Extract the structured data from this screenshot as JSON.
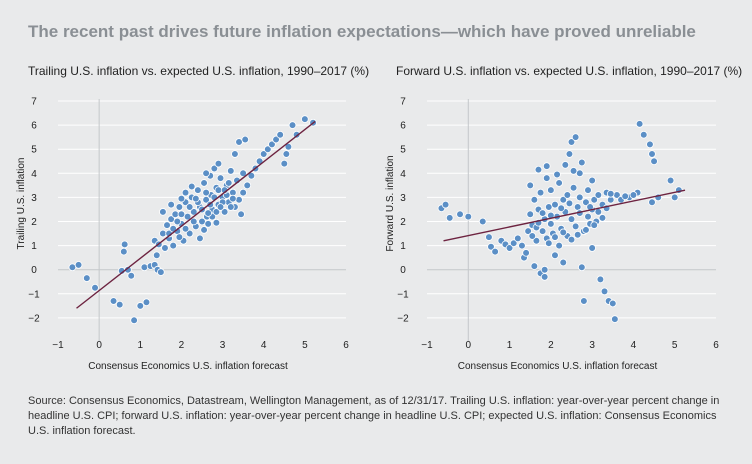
{
  "title": "The recent past drives future inflation expectations—which have proved unreliable",
  "source": "Source: Consensus Economics, Datastream, Wellington Management, as of 12/31/17. Trailing U.S. inflation: year-over-year percent change in headline U.S. CPI; forward U.S. inflation: year-over-year percent change in headline U.S. CPI; expected U.S. inflation: Consensus Economics U.S. inflation forecast.",
  "colors": {
    "points": "#5b8fc6",
    "point_stroke": "#ffffff",
    "trend": "#6d2340",
    "grid": "#ffffff",
    "zero_axis": "#c4c7ca",
    "background": "#e9eaeb"
  },
  "chart_data": [
    {
      "type": "scatter",
      "title": "Trailing U.S. inflation vs. expected U.S. inflation, 1990–2017 (%)",
      "xlabel": "Consensus Economics U.S. inflation forecast",
      "ylabel": "Trailing U.S. inflation",
      "xlim": [
        -1,
        6
      ],
      "ylim": [
        -3,
        7
      ],
      "xticks": [
        -1,
        0,
        1,
        2,
        3,
        4,
        5,
        6
      ],
      "yticks": [
        -2,
        -1,
        0,
        1,
        2,
        3,
        4,
        5,
        6,
        7
      ],
      "trendline": {
        "x": [
          -0.55,
          5.25
        ],
        "y": [
          -1.6,
          6.15
        ]
      },
      "points": [
        [
          -0.65,
          0.1
        ],
        [
          -0.5,
          0.2
        ],
        [
          -0.3,
          -0.35
        ],
        [
          -0.1,
          -0.75
        ],
        [
          0.35,
          -1.3
        ],
        [
          0.5,
          -1.45
        ],
        [
          0.55,
          -0.05
        ],
        [
          0.6,
          0.75
        ],
        [
          0.62,
          1.05
        ],
        [
          0.7,
          0.0
        ],
        [
          0.78,
          -0.25
        ],
        [
          0.85,
          -2.1
        ],
        [
          1.0,
          -1.5
        ],
        [
          1.15,
          -1.35
        ],
        [
          1.1,
          0.1
        ],
        [
          1.25,
          0.15
        ],
        [
          1.35,
          0.2
        ],
        [
          1.4,
          0.6
        ],
        [
          1.42,
          0.0
        ],
        [
          1.5,
          -0.1
        ],
        [
          1.35,
          1.2
        ],
        [
          1.45,
          1.05
        ],
        [
          1.55,
          1.5
        ],
        [
          1.6,
          0.9
        ],
        [
          1.65,
          1.85
        ],
        [
          1.7,
          1.3
        ],
        [
          1.75,
          2.1
        ],
        [
          1.8,
          1.0
        ],
        [
          1.85,
          2.3
        ],
        [
          1.9,
          1.6
        ],
        [
          1.95,
          2.6
        ],
        [
          2.0,
          1.9
        ],
        [
          2.05,
          1.2
        ],
        [
          2.1,
          2.8
        ],
        [
          2.15,
          2.2
        ],
        [
          2.2,
          1.5
        ],
        [
          2.25,
          3.0
        ],
        [
          2.3,
          2.4
        ],
        [
          2.35,
          1.8
        ],
        [
          2.4,
          3.3
        ],
        [
          2.45,
          2.6
        ],
        [
          2.5,
          2.0
        ],
        [
          2.55,
          3.6
        ],
        [
          2.6,
          2.9
        ],
        [
          2.62,
          2.2
        ],
        [
          2.7,
          3.9
        ],
        [
          2.72,
          3.1
        ],
        [
          2.75,
          2.5
        ],
        [
          2.8,
          4.2
        ],
        [
          2.85,
          3.4
        ],
        [
          2.9,
          2.7
        ],
        [
          2.95,
          3.8
        ],
        [
          3.0,
          3.0
        ],
        [
          3.05,
          2.4
        ],
        [
          3.1,
          3.5
        ],
        [
          3.15,
          2.8
        ],
        [
          3.2,
          4.1
        ],
        [
          3.25,
          3.2
        ],
        [
          3.3,
          2.6
        ],
        [
          3.35,
          3.7
        ],
        [
          3.4,
          2.9
        ],
        [
          3.45,
          2.3
        ],
        [
          1.7,
          1.5
        ],
        [
          1.8,
          1.7
        ],
        [
          1.9,
          2.0
        ],
        [
          2.0,
          2.3
        ],
        [
          2.1,
          1.7
        ],
        [
          2.2,
          2.6
        ],
        [
          2.3,
          2.0
        ],
        [
          2.4,
          2.8
        ],
        [
          2.5,
          2.5
        ],
        [
          2.6,
          3.2
        ],
        [
          2.7,
          2.7
        ],
        [
          2.8,
          3.0
        ],
        [
          2.9,
          3.3
        ],
        [
          3.0,
          2.8
        ],
        [
          3.1,
          3.1
        ],
        [
          3.2,
          2.6
        ],
        [
          2.45,
          1.3
        ],
        [
          2.55,
          1.65
        ],
        [
          2.65,
          1.9
        ],
        [
          2.75,
          2.2
        ],
        [
          2.85,
          2.4
        ],
        [
          2.95,
          2.6
        ],
        [
          3.05,
          3.3
        ],
        [
          3.15,
          3.6
        ],
        [
          2.0,
          2.95
        ],
        [
          2.1,
          3.2
        ],
        [
          2.25,
          3.45
        ],
        [
          2.6,
          4.0
        ],
        [
          2.9,
          4.4
        ],
        [
          3.3,
          4.8
        ],
        [
          3.4,
          5.3
        ],
        [
          3.55,
          5.4
        ],
        [
          3.5,
          4.0
        ],
        [
          3.6,
          3.5
        ],
        [
          3.7,
          3.9
        ],
        [
          3.8,
          4.2
        ],
        [
          3.9,
          4.5
        ],
        [
          4.0,
          4.8
        ],
        [
          4.1,
          5.0
        ],
        [
          4.2,
          5.2
        ],
        [
          4.3,
          5.4
        ],
        [
          4.4,
          5.6
        ],
        [
          4.5,
          4.4
        ],
        [
          4.55,
          4.8
        ],
        [
          4.6,
          5.1
        ],
        [
          4.7,
          6.0
        ],
        [
          4.8,
          5.6
        ],
        [
          5.0,
          6.25
        ],
        [
          5.2,
          6.1
        ],
        [
          1.55,
          2.4
        ],
        [
          1.75,
          2.7
        ],
        [
          1.95,
          1.35
        ],
        [
          2.35,
          2.95
        ],
        [
          2.65,
          2.35
        ],
        [
          2.85,
          1.95
        ],
        [
          3.25,
          2.95
        ],
        [
          3.5,
          3.2
        ]
      ]
    },
    {
      "type": "scatter",
      "title": "Forward U.S. inflation vs. expected U.S. inflation, 1990–2017 (%)",
      "xlabel": "Consensus Economics U.S. inflation forecast",
      "ylabel": "Forward U.S. inflation",
      "xlim": [
        -1,
        6
      ],
      "ylim": [
        -3,
        7
      ],
      "xticks": [
        -1,
        0,
        1,
        2,
        3,
        4,
        5,
        6
      ],
      "yticks": [
        -2,
        -1,
        0,
        1,
        2,
        3,
        4,
        5,
        6,
        7
      ],
      "trendline": {
        "x": [
          -0.6,
          5.25
        ],
        "y": [
          1.2,
          3.3
        ]
      },
      "points": [
        [
          -0.65,
          2.55
        ],
        [
          -0.55,
          2.7
        ],
        [
          -0.45,
          2.15
        ],
        [
          -0.2,
          2.3
        ],
        [
          0.0,
          2.2
        ],
        [
          0.35,
          2.0
        ],
        [
          0.5,
          1.35
        ],
        [
          0.55,
          0.95
        ],
        [
          0.65,
          0.75
        ],
        [
          0.8,
          1.2
        ],
        [
          0.9,
          1.05
        ],
        [
          1.0,
          0.9
        ],
        [
          1.1,
          1.1
        ],
        [
          1.2,
          1.3
        ],
        [
          1.3,
          1.0
        ],
        [
          1.35,
          0.5
        ],
        [
          1.4,
          0.7
        ],
        [
          1.45,
          1.6
        ],
        [
          1.5,
          2.3
        ],
        [
          1.5,
          3.5
        ],
        [
          1.55,
          1.85
        ],
        [
          1.6,
          2.9
        ],
        [
          1.6,
          0.15
        ],
        [
          1.65,
          1.2
        ],
        [
          1.7,
          2.5
        ],
        [
          1.7,
          4.15
        ],
        [
          1.75,
          3.2
        ],
        [
          1.75,
          -0.15
        ],
        [
          1.8,
          1.6
        ],
        [
          1.85,
          2.1
        ],
        [
          1.85,
          0.0
        ],
        [
          1.9,
          3.8
        ],
        [
          1.9,
          1.3
        ],
        [
          1.95,
          2.6
        ],
        [
          2.0,
          1.9
        ],
        [
          2.0,
          3.3
        ],
        [
          2.05,
          1.5
        ],
        [
          2.1,
          2.7
        ],
        [
          2.15,
          2.2
        ],
        [
          2.2,
          3.6
        ],
        [
          2.2,
          1.0
        ],
        [
          2.25,
          1.7
        ],
        [
          2.3,
          2.9
        ],
        [
          2.35,
          2.4
        ],
        [
          2.4,
          3.1
        ],
        [
          2.4,
          1.4
        ],
        [
          2.45,
          4.8
        ],
        [
          2.5,
          5.3
        ],
        [
          2.5,
          2.1
        ],
        [
          2.55,
          3.4
        ],
        [
          2.6,
          1.8
        ],
        [
          2.6,
          5.5
        ],
        [
          2.65,
          2.6
        ],
        [
          2.7,
          3.0
        ],
        [
          2.7,
          4.0
        ],
        [
          2.75,
          0.1
        ],
        [
          2.8,
          1.6
        ],
        [
          2.8,
          -1.3
        ],
        [
          2.85,
          2.8
        ],
        [
          2.9,
          2.2
        ],
        [
          2.9,
          3.3
        ],
        [
          2.95,
          1.9
        ],
        [
          3.0,
          2.5
        ],
        [
          3.0,
          0.9
        ],
        [
          3.05,
          2.9
        ],
        [
          3.1,
          2.0
        ],
        [
          3.15,
          3.1
        ],
        [
          3.2,
          -0.4
        ],
        [
          3.25,
          2.7
        ],
        [
          3.3,
          -0.9
        ],
        [
          3.35,
          3.2
        ],
        [
          3.4,
          -1.3
        ],
        [
          3.45,
          2.9
        ],
        [
          3.5,
          -1.4
        ],
        [
          3.55,
          -2.05
        ],
        [
          3.6,
          3.1
        ],
        [
          3.7,
          2.9
        ],
        [
          3.9,
          3.0
        ],
        [
          4.1,
          3.2
        ],
        [
          4.15,
          6.05
        ],
        [
          4.25,
          5.6
        ],
        [
          4.4,
          5.2
        ],
        [
          4.45,
          4.8
        ],
        [
          4.5,
          4.5
        ],
        [
          4.45,
          2.8
        ],
        [
          4.6,
          3.0
        ],
        [
          4.9,
          3.7
        ],
        [
          5.0,
          3.0
        ],
        [
          5.1,
          3.3
        ],
        [
          1.65,
          1.75
        ],
        [
          1.8,
          2.35
        ],
        [
          1.95,
          1.1
        ],
        [
          2.1,
          1.35
        ],
        [
          2.3,
          1.55
        ],
        [
          2.5,
          1.25
        ],
        [
          2.65,
          1.45
        ],
        [
          2.85,
          1.65
        ],
        [
          3.05,
          1.85
        ],
        [
          3.25,
          2.15
        ],
        [
          1.55,
          1.4
        ],
        [
          1.7,
          1.95
        ],
        [
          2.0,
          2.25
        ],
        [
          2.25,
          2.55
        ],
        [
          2.45,
          2.75
        ],
        [
          2.7,
          2.35
        ],
        [
          2.95,
          2.6
        ],
        [
          3.15,
          2.4
        ],
        [
          3.35,
          2.55
        ],
        [
          1.9,
          4.3
        ],
        [
          2.15,
          3.95
        ],
        [
          2.35,
          4.35
        ],
        [
          2.55,
          4.1
        ],
        [
          2.75,
          4.45
        ],
        [
          3.0,
          3.7
        ],
        [
          2.1,
          0.6
        ],
        [
          1.85,
          -0.3
        ],
        [
          2.3,
          0.3
        ],
        [
          3.45,
          3.15
        ],
        [
          3.8,
          3.05
        ],
        [
          4.0,
          3.1
        ]
      ]
    }
  ]
}
